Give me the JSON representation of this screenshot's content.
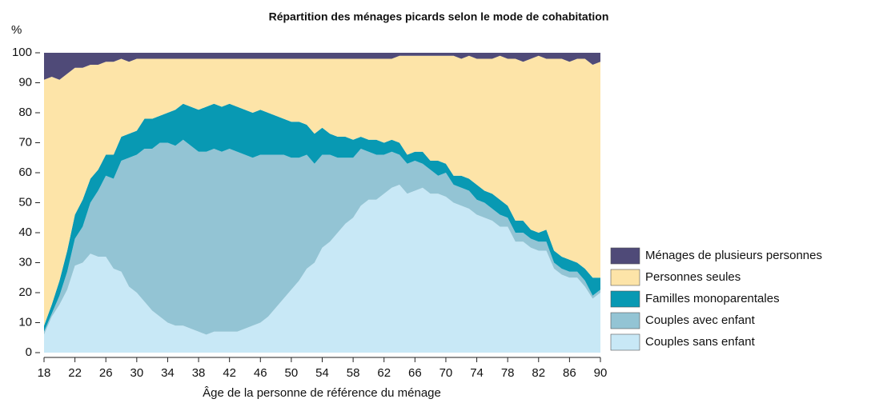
{
  "chart_data": {
    "type": "stacked_area",
    "title": "Répartition des ménages picards selon le mode de cohabitation",
    "y_label": "%",
    "x_label": "Âge de la personne de référence du ménage",
    "x": [
      18,
      19,
      20,
      21,
      22,
      23,
      24,
      25,
      26,
      27,
      28,
      29,
      30,
      31,
      32,
      33,
      34,
      35,
      36,
      37,
      38,
      39,
      40,
      41,
      42,
      43,
      44,
      45,
      46,
      47,
      48,
      49,
      50,
      51,
      52,
      53,
      54,
      55,
      56,
      57,
      58,
      59,
      60,
      61,
      62,
      63,
      64,
      65,
      66,
      67,
      68,
      69,
      70,
      71,
      72,
      73,
      74,
      75,
      76,
      77,
      78,
      79,
      80,
      81,
      82,
      83,
      84,
      85,
      86,
      87,
      88,
      89,
      90
    ],
    "xlim": [
      18,
      90
    ],
    "xticks": [
      18,
      22,
      26,
      30,
      34,
      38,
      42,
      46,
      50,
      54,
      58,
      62,
      66,
      70,
      74,
      78,
      82,
      86,
      90
    ],
    "ylim": [
      0,
      100
    ],
    "yticks": [
      0,
      10,
      20,
      30,
      40,
      50,
      60,
      70,
      80,
      90,
      100
    ],
    "series": [
      {
        "name": "Couples sans enfant",
        "color": "#c8e8f6",
        "values": [
          6,
          12,
          16,
          21,
          29,
          30,
          33,
          32,
          32,
          28,
          27,
          22,
          20,
          17,
          14,
          12,
          10,
          9,
          9,
          8,
          7,
          6,
          7,
          7,
          7,
          7,
          8,
          9,
          10,
          12,
          15,
          18,
          21,
          24,
          28,
          30,
          35,
          37,
          40,
          43,
          45,
          49,
          51,
          51,
          53,
          55,
          56,
          53,
          54,
          55,
          53,
          53,
          52,
          50,
          49,
          48,
          46,
          45,
          44,
          42,
          42,
          37,
          37,
          35,
          34,
          34,
          28,
          26,
          25,
          25,
          22,
          18,
          20
        ]
      },
      {
        "name": "Couples avec enfant",
        "color": "#93c4d4",
        "values": [
          1,
          1,
          3,
          6,
          9,
          12,
          17,
          22,
          27,
          30,
          37,
          43,
          46,
          51,
          54,
          58,
          60,
          60,
          62,
          61,
          60,
          61,
          61,
          60,
          61,
          60,
          58,
          56,
          56,
          54,
          51,
          48,
          44,
          41,
          38,
          33,
          31,
          29,
          25,
          22,
          20,
          19,
          16,
          15,
          13,
          12,
          10,
          10,
          10,
          8,
          8,
          6,
          8,
          6,
          6,
          6,
          5,
          5,
          4,
          4,
          3,
          3,
          3,
          3,
          3,
          3,
          2,
          2,
          2,
          2,
          2,
          1,
          1
        ]
      },
      {
        "name": "Familles monoparentales",
        "color": "#0899b3",
        "values": [
          2,
          3,
          5,
          7,
          8,
          9,
          8,
          7,
          7,
          8,
          8,
          8,
          8,
          10,
          10,
          9,
          10,
          12,
          12,
          13,
          14,
          15,
          15,
          15,
          15,
          15,
          15,
          15,
          15,
          14,
          13,
          12,
          12,
          12,
          10,
          10,
          9,
          7,
          7,
          7,
          6,
          4,
          4,
          5,
          4,
          4,
          4,
          3,
          3,
          4,
          3,
          5,
          3,
          3,
          4,
          4,
          5,
          4,
          5,
          5,
          4,
          4,
          4,
          3,
          3,
          4,
          4,
          4,
          4,
          3,
          4,
          6,
          4
        ]
      },
      {
        "name": "Personnes seules",
        "color": "#fde4a8",
        "values": [
          82,
          76,
          67,
          59,
          49,
          44,
          38,
          35,
          31,
          31,
          26,
          24,
          24,
          20,
          20,
          19,
          18,
          17,
          15,
          16,
          17,
          16,
          15,
          16,
          15,
          16,
          17,
          18,
          17,
          18,
          19,
          20,
          21,
          21,
          22,
          25,
          23,
          25,
          26,
          26,
          27,
          26,
          27,
          27,
          28,
          27,
          29,
          33,
          32,
          32,
          35,
          35,
          36,
          40,
          39,
          41,
          42,
          44,
          45,
          48,
          49,
          54,
          53,
          57,
          59,
          57,
          64,
          66,
          66,
          68,
          70,
          71,
          72
        ]
      },
      {
        "name": "Ménages de plusieurs personnes",
        "color": "#4f4a78",
        "values": [
          9,
          8,
          9,
          7,
          5,
          5,
          4,
          4,
          3,
          3,
          2,
          3,
          2,
          2,
          2,
          2,
          2,
          2,
          2,
          2,
          2,
          2,
          2,
          2,
          2,
          2,
          2,
          2,
          2,
          2,
          2,
          2,
          2,
          2,
          2,
          2,
          2,
          2,
          2,
          2,
          2,
          2,
          2,
          2,
          2,
          2,
          1,
          1,
          1,
          1,
          1,
          1,
          1,
          1,
          2,
          1,
          2,
          2,
          2,
          1,
          2,
          2,
          3,
          2,
          1,
          2,
          2,
          2,
          3,
          2,
          2,
          4,
          3
        ]
      }
    ]
  }
}
